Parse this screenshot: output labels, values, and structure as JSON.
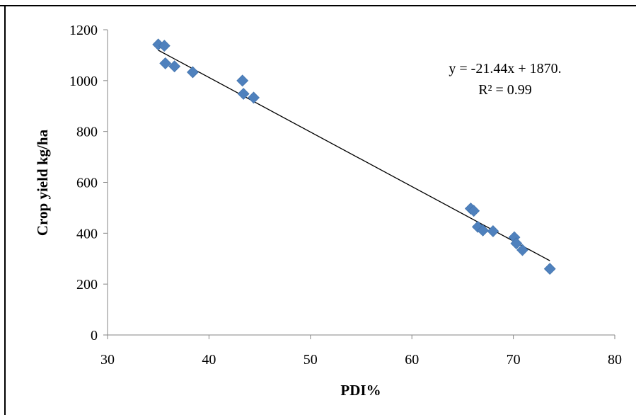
{
  "chart_data": {
    "type": "scatter",
    "xlabel": "PDI%",
    "ylabel": "Crop yield kg/ha",
    "xlim": [
      30,
      80
    ],
    "ylim": [
      0,
      1200
    ],
    "xticks": [
      "30",
      "40",
      "50",
      "60",
      "70",
      "80"
    ],
    "yticks": [
      "0",
      "200",
      "400",
      "600",
      "800",
      "1000",
      "1200"
    ],
    "grid": false,
    "legend": "none",
    "marker": "diamond",
    "marker_color": "#4f81bd",
    "series": [
      {
        "points": [
          [
            35.0,
            1142
          ],
          [
            35.6,
            1137
          ],
          [
            35.7,
            1068
          ],
          [
            36.6,
            1056
          ],
          [
            38.4,
            1033
          ],
          [
            43.3,
            1000
          ],
          [
            43.4,
            948
          ],
          [
            44.4,
            933
          ],
          [
            65.8,
            497
          ],
          [
            66.1,
            488
          ],
          [
            66.5,
            425
          ],
          [
            67.0,
            411
          ],
          [
            68.0,
            408
          ],
          [
            70.1,
            384
          ],
          [
            70.3,
            360
          ],
          [
            70.9,
            334
          ],
          [
            73.6,
            260
          ]
        ]
      }
    ],
    "trendline": {
      "x": [
        35.0,
        73.6
      ],
      "slope": -21.44,
      "intercept": 1870,
      "color": "#000000",
      "equation": "y = -21.44x + 1870.",
      "r2": "R² = 0.99"
    }
  }
}
